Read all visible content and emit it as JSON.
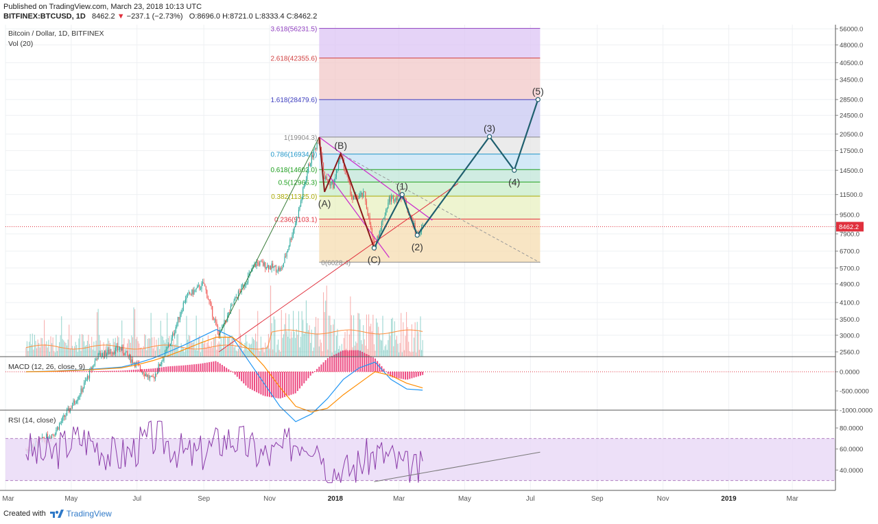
{
  "header": {
    "published": "Published on TradingView.com, March 23, 2018 10:13 UTC",
    "symbol": "BITFINEX:BTCUSD, 1D",
    "price": "8462.2",
    "change": "−237.1 (−2.73%)",
    "ohlc": "O:8696.0 H:8721.0 L:8333.4 C:8462.2"
  },
  "footer": {
    "created_with": "Created with",
    "brand": "TradingView"
  },
  "colors": {
    "up": "#26a69a",
    "down": "#ef5350",
    "price_line": "#e0303d",
    "macd": "#2196f3",
    "signal": "#ff8c00",
    "rsi": "#8a3aa8",
    "wave": "#1f5f6e",
    "channel": "#cc33cc",
    "trend": "#e0303d"
  },
  "chart_data": [
    {
      "type": "candlestick",
      "title": "Bitcoin / Dollar, 1D, BITFINEX",
      "subtitle": "Vol (20)",
      "price_axis_labels": [
        "56000.0",
        "48000.0",
        "40500.0",
        "34500.0",
        "28500.0",
        "24500.0",
        "20500.0",
        "17500.0",
        "14500.0",
        "11500.0",
        "9500.0",
        "7900.0",
        "6700.0",
        "5700.0",
        "4900.0",
        "4100.0",
        "3500.0",
        "3000.0",
        "2560.0"
      ],
      "time_axis_labels": [
        "Mar",
        "May",
        "Jul",
        "Sep",
        "Nov",
        "2018",
        "Mar",
        "May",
        "Jul",
        "Sep",
        "Nov",
        "2019",
        "Mar"
      ],
      "last_price": 8462.2,
      "price_path": [
        [
          "2017-03-20",
          1000
        ],
        [
          "2017-04-15",
          1180
        ],
        [
          "2017-05-10",
          1750
        ],
        [
          "2017-05-25",
          2450
        ],
        [
          "2017-06-15",
          2650
        ],
        [
          "2017-07-15",
          1950
        ],
        [
          "2017-08-01",
          2800
        ],
        [
          "2017-08-15",
          4300
        ],
        [
          "2017-09-01",
          4900
        ],
        [
          "2017-09-15",
          3000
        ],
        [
          "2017-10-01",
          4300
        ],
        [
          "2017-10-20",
          6000
        ],
        [
          "2017-11-12",
          5600
        ],
        [
          "2017-11-28",
          9800
        ],
        [
          "2017-12-07",
          15000
        ],
        [
          "2017-12-17",
          19904.3
        ],
        [
          "2017-12-22",
          13500
        ],
        [
          "2017-12-30",
          12500
        ],
        [
          "2018-01-06",
          17000
        ],
        [
          "2018-01-17",
          11000
        ],
        [
          "2018-01-28",
          11500
        ],
        [
          "2018-02-06",
          6900
        ],
        [
          "2018-02-20",
          11000
        ],
        [
          "2018-03-04",
          11500
        ],
        [
          "2018-03-18",
          7800
        ],
        [
          "2018-03-23",
          8462.2
        ]
      ],
      "fibonacci": [
        {
          "level": "0",
          "price": 6028.4
        },
        {
          "level": "0.236",
          "price": 9103.1
        },
        {
          "level": "0.382",
          "price": 11325.0
        },
        {
          "level": "0.5",
          "price": 12966.3
        },
        {
          "level": "0.618",
          "price": 14602.0
        },
        {
          "level": "0.786",
          "price": 16934.0
        },
        {
          "level": "1",
          "price": 19904.3
        },
        {
          "level": "1.618",
          "price": 28479.6
        },
        {
          "level": "2.618",
          "price": 42355.6
        },
        {
          "level": "3.618",
          "price": 56231.5
        }
      ],
      "fib_labels": [
        "0(6028.4)",
        "0.236(9103.1)",
        "0.382(11325.0)",
        "0.5(12966.3)",
        "0.618(14602.0)",
        "0.786(16934.0)",
        "1(19904.3)",
        "1.618(28479.6)",
        "2.618(42355.6)",
        "3.618(56231.5)"
      ],
      "wave_labels": [
        {
          "text": "(A)",
          "date": "2017-12-22",
          "price": 11800
        },
        {
          "text": "(B)",
          "date": "2018-01-06",
          "price": 17000
        },
        {
          "text": "(C)",
          "date": "2018-02-06",
          "price": 6900
        },
        {
          "text": "(1)",
          "date": "2018-03-04",
          "price": 11500
        },
        {
          "text": "(2)",
          "date": "2018-03-18",
          "price": 7800
        },
        {
          "text": "(3)",
          "date": "2018-05-24",
          "price": 20000
        },
        {
          "text": "(4)",
          "date": "2018-06-16",
          "price": 14500
        },
        {
          "text": "(5)",
          "date": "2018-07-08",
          "price": 28479.6
        }
      ],
      "projection_path": [
        [
          "2018-02-06",
          6900
        ],
        [
          "2018-03-04",
          11500
        ],
        [
          "2018-03-18",
          7800
        ],
        [
          "2018-05-24",
          20000
        ],
        [
          "2018-06-16",
          14500
        ],
        [
          "2018-07-08",
          28479.6
        ]
      ],
      "volume_series": "volume histogram"
    },
    {
      "type": "line",
      "title": "MACD (12, 26, close, 9)",
      "axis_labels": [
        "0.0000",
        "-500.0000",
        "-1000.0000"
      ],
      "series": [
        {
          "name": "MACD",
          "values": [
            0,
            10,
            20,
            40,
            60,
            90,
            120,
            220,
            350,
            520,
            700,
            900,
            1100,
            900,
            300,
            -300,
            -900,
            -1300,
            -1100,
            -700,
            -200,
            100,
            250,
            -200,
            -450,
            -480
          ]
        },
        {
          "name": "Signal",
          "values": [
            0,
            5,
            15,
            30,
            50,
            75,
            100,
            180,
            290,
            420,
            580,
            750,
            900,
            900,
            600,
            150,
            -400,
            -900,
            -1050,
            -950,
            -600,
            -300,
            0,
            -100,
            -300,
            -420
          ]
        }
      ]
    },
    {
      "type": "line",
      "title": "RSI (14, close)",
      "axis_labels": [
        "80.0000",
        "60.0000",
        "40.0000"
      ],
      "ylim": [
        20,
        95
      ],
      "band": [
        30,
        70
      ]
    }
  ]
}
